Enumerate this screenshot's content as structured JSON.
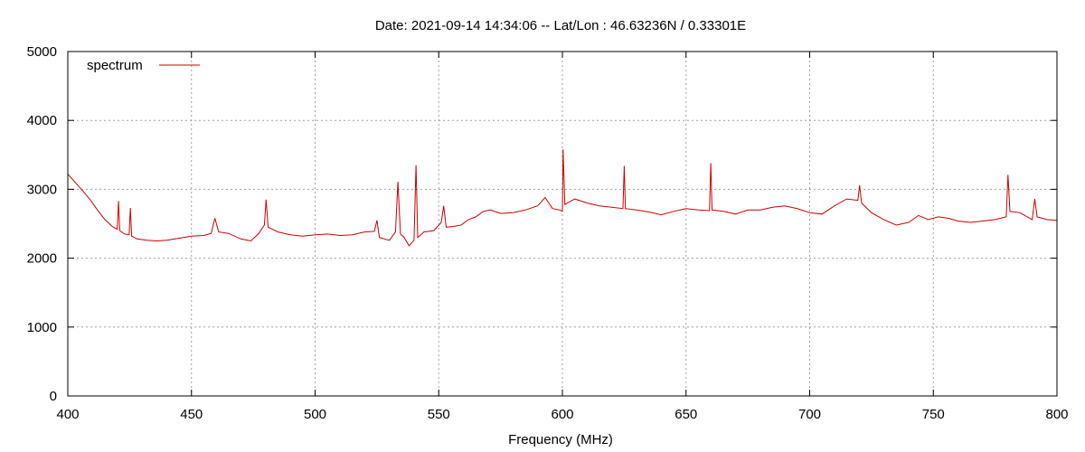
{
  "chart_data": {
    "type": "line",
    "title": "Date: 2021-09-14 14:34:06  --  Lat/Lon : 46.63236N / 0.33301E",
    "xlabel": "Frequency (MHz)",
    "ylabel": "",
    "xlim": [
      400,
      800
    ],
    "ylim": [
      0,
      5000
    ],
    "xticks": [
      400,
      450,
      500,
      550,
      600,
      650,
      700,
      750,
      800
    ],
    "yticks": [
      0,
      1000,
      2000,
      3000,
      4000,
      5000
    ],
    "grid": true,
    "legend_position": "top-left",
    "series": [
      {
        "name": "spectrum",
        "color": "#cc0000",
        "points": [
          [
            400,
            3220
          ],
          [
            403,
            3100
          ],
          [
            406,
            2980
          ],
          [
            409,
            2850
          ],
          [
            412,
            2700
          ],
          [
            415,
            2560
          ],
          [
            418,
            2460
          ],
          [
            420,
            2420
          ],
          [
            420.5,
            2830
          ],
          [
            421,
            2400
          ],
          [
            423,
            2350
          ],
          [
            424.8,
            2340
          ],
          [
            425.3,
            2730
          ],
          [
            425.8,
            2320
          ],
          [
            428,
            2280
          ],
          [
            432,
            2260
          ],
          [
            436,
            2250
          ],
          [
            440,
            2260
          ],
          [
            445,
            2290
          ],
          [
            450,
            2320
          ],
          [
            455,
            2330
          ],
          [
            458,
            2360
          ],
          [
            459.5,
            2580
          ],
          [
            461,
            2380
          ],
          [
            465,
            2360
          ],
          [
            470,
            2280
          ],
          [
            474,
            2250
          ],
          [
            477,
            2350
          ],
          [
            479.5,
            2480
          ],
          [
            480.2,
            2850
          ],
          [
            481,
            2450
          ],
          [
            485,
            2380
          ],
          [
            490,
            2340
          ],
          [
            495,
            2320
          ],
          [
            500,
            2340
          ],
          [
            505,
            2350
          ],
          [
            510,
            2330
          ],
          [
            515,
            2340
          ],
          [
            520,
            2380
          ],
          [
            524,
            2390
          ],
          [
            525,
            2550
          ],
          [
            526,
            2300
          ],
          [
            530,
            2260
          ],
          [
            532.5,
            2380
          ],
          [
            533.5,
            3110
          ],
          [
            534.5,
            2350
          ],
          [
            536,
            2300
          ],
          [
            538,
            2180
          ],
          [
            540,
            2260
          ],
          [
            540.8,
            3350
          ],
          [
            541.5,
            2300
          ],
          [
            544,
            2380
          ],
          [
            548,
            2400
          ],
          [
            551,
            2520
          ],
          [
            552,
            2760
          ],
          [
            553,
            2450
          ],
          [
            556,
            2460
          ],
          [
            559,
            2480
          ],
          [
            562,
            2560
          ],
          [
            565,
            2600
          ],
          [
            568,
            2680
          ],
          [
            571,
            2700
          ],
          [
            575,
            2650
          ],
          [
            580,
            2660
          ],
          [
            585,
            2700
          ],
          [
            590,
            2760
          ],
          [
            593,
            2880
          ],
          [
            596,
            2720
          ],
          [
            599,
            2700
          ],
          [
            600,
            2680
          ],
          [
            600.3,
            3580
          ],
          [
            601,
            2780
          ],
          [
            605,
            2860
          ],
          [
            610,
            2800
          ],
          [
            615,
            2760
          ],
          [
            620,
            2740
          ],
          [
            624.5,
            2720
          ],
          [
            625,
            3340
          ],
          [
            625.5,
            2720
          ],
          [
            630,
            2700
          ],
          [
            635,
            2670
          ],
          [
            640,
            2630
          ],
          [
            645,
            2680
          ],
          [
            650,
            2720
          ],
          [
            655,
            2700
          ],
          [
            659.5,
            2690
          ],
          [
            660,
            3380
          ],
          [
            660.5,
            2700
          ],
          [
            665,
            2680
          ],
          [
            670,
            2640
          ],
          [
            675,
            2700
          ],
          [
            680,
            2700
          ],
          [
            685,
            2740
          ],
          [
            690,
            2760
          ],
          [
            695,
            2720
          ],
          [
            700,
            2660
          ],
          [
            705,
            2640
          ],
          [
            710,
            2760
          ],
          [
            715,
            2860
          ],
          [
            719.5,
            2840
          ],
          [
            720.2,
            3060
          ],
          [
            721,
            2800
          ],
          [
            725,
            2660
          ],
          [
            730,
            2560
          ],
          [
            735,
            2480
          ],
          [
            740,
            2520
          ],
          [
            744,
            2620
          ],
          [
            748,
            2560
          ],
          [
            752,
            2600
          ],
          [
            756,
            2580
          ],
          [
            760,
            2540
          ],
          [
            765,
            2520
          ],
          [
            770,
            2540
          ],
          [
            775,
            2560
          ],
          [
            779.5,
            2600
          ],
          [
            780.2,
            3210
          ],
          [
            781,
            2680
          ],
          [
            785,
            2660
          ],
          [
            790,
            2560
          ],
          [
            791,
            2860
          ],
          [
            792,
            2600
          ],
          [
            796,
            2560
          ],
          [
            800,
            2550
          ]
        ]
      }
    ]
  }
}
